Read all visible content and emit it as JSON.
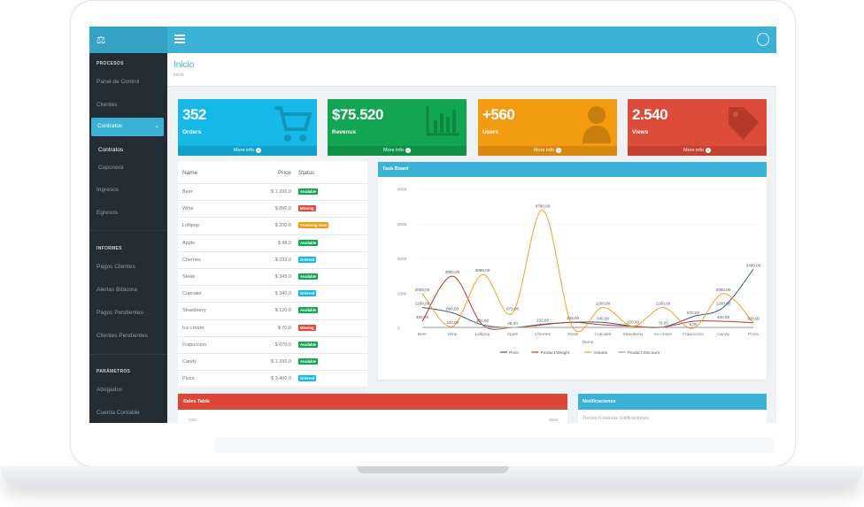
{
  "topbar": {
    "menu_icon": "hamburger-icon",
    "user_icon": "user-circle-icon",
    "logo_icon": "scale-icon"
  },
  "sidebar": {
    "sections": [
      {
        "title": "PROCESOS"
      },
      {
        "title": "INFORMES"
      },
      {
        "title": "PARÁMETROS"
      }
    ],
    "procesos_items": [
      "Panel de Control",
      "Clientes"
    ],
    "active_item": "Contratos",
    "sub_items": [
      "Contratos",
      "Cuponera"
    ],
    "more_items": [
      "Ingresos",
      "Egresos"
    ],
    "informes_items": [
      "Pagos Clientes",
      "Alertas Bitácora",
      "Pagos Pendientes",
      "Clientes Pendientes"
    ],
    "parametros_items": [
      "Abogados",
      "Cuenta Contable"
    ]
  },
  "header": {
    "title": "Inicio",
    "breadcrumb": "Inicio"
  },
  "cards": [
    {
      "value": "352",
      "label": "Orders",
      "more": "More info",
      "color": "#15b8e6",
      "icon": "cart-icon"
    },
    {
      "value": "$75.520",
      "label": "Revenue",
      "more": "More info",
      "color": "#12a652",
      "icon": "bar-chart-icon"
    },
    {
      "value": "+560",
      "label": "Users",
      "more": "More info",
      "color": "#f39c12",
      "icon": "person-icon"
    },
    {
      "value": "2.540",
      "label": "Views",
      "more": "More info",
      "color": "#dd4b39",
      "icon": "tag-icon"
    }
  ],
  "products": {
    "headers": {
      "name": "Name",
      "price": "Price",
      "status": "Status"
    },
    "rows": [
      {
        "name": "Beer",
        "price": "$ 1.200,0",
        "status": "Available",
        "color": "#12a652"
      },
      {
        "name": "Wine",
        "price": "$ 890,0",
        "status": "Missing",
        "color": "#dd4b39"
      },
      {
        "name": "Lollipop",
        "price": "$ 200,0",
        "status": "Comming soon",
        "color": "#f39c12"
      },
      {
        "name": "Apple",
        "price": "$ 48,0",
        "status": "Available",
        "color": "#12a652"
      },
      {
        "name": "Cherries",
        "price": "$ 232,0",
        "status": "Ordered",
        "color": "#15b8e6"
      },
      {
        "name": "Steak",
        "price": "$ 345,0",
        "status": "Available",
        "color": "#12a652"
      },
      {
        "name": "Cupcake",
        "price": "$ 340,0",
        "status": "Ordered",
        "color": "#15b8e6"
      },
      {
        "name": "Strawberry",
        "price": "$ 120,0",
        "status": "Available",
        "color": "#12a652"
      },
      {
        "name": "Ice cream",
        "price": "$ 70,0",
        "status": "Missing",
        "color": "#dd4b39"
      },
      {
        "name": "Frapuccino",
        "price": "$ 670,0",
        "status": "Available",
        "color": "#12a652"
      },
      {
        "name": "Candy",
        "price": "$ 1.200,0",
        "status": "Available",
        "color": "#12a652"
      },
      {
        "name": "Pizza",
        "price": "$ 3.400,0",
        "status": "Ordered",
        "color": "#15b8e6"
      }
    ]
  },
  "taskboard": {
    "title": "Task Board"
  },
  "chart_data": {
    "type": "line",
    "categories": [
      "Beer",
      "Wine",
      "Lollipop",
      "Apple",
      "Cherries",
      "Steak",
      "Cupcake",
      "Strawberry",
      "Ice cream",
      "Frapuccino",
      "Candy",
      "Pizza"
    ],
    "xlabel": "Name",
    "ylabel": "",
    "ylim": [
      0,
      8000
    ],
    "yticks": [
      0,
      2000,
      4000,
      6000,
      8000
    ],
    "grid": true,
    "legend": "bottom",
    "series": [
      {
        "name": "Price",
        "color": "#3c5a8a",
        "values": [
          1200,
          890,
          200,
          48,
          232,
          345,
          340,
          120,
          70,
          670,
          1200,
          3400
        ]
      },
      {
        "name": "Product Weight",
        "color": "#c0392b",
        "values": [
          400,
          3000,
          200,
          48,
          200,
          345,
          200,
          120,
          70,
          400,
          400,
          320
        ]
      },
      {
        "name": "Volume",
        "color": "#f0a030",
        "values": [
          2000,
          100,
          3096,
          879,
          6798,
          50,
          1200,
          120,
          1200,
          5,
          2000,
          320
        ]
      },
      {
        "name": "Product Discount",
        "color": "#9b9b9b",
        "values": [
          50,
          50,
          50,
          48,
          50,
          50,
          50,
          50,
          50,
          50,
          50,
          50
        ]
      }
    ],
    "point_labels": [
      {
        "text": "2000,00",
        "series": 2,
        "index": 0
      },
      {
        "text": "1200,00",
        "series": 0,
        "index": 0
      },
      {
        "text": "400,00",
        "series": 1,
        "index": 0
      },
      {
        "text": "3000,00",
        "series": 1,
        "index": 1
      },
      {
        "text": "890,00",
        "series": 0,
        "index": 1
      },
      {
        "text": "100,00",
        "series": 2,
        "index": 1
      },
      {
        "text": "3096,00",
        "series": 2,
        "index": 2
      },
      {
        "text": "200,00",
        "series": 0,
        "index": 2
      },
      {
        "text": "879,00",
        "series": 2,
        "index": 3
      },
      {
        "text": "48,00",
        "series": 0,
        "index": 3
      },
      {
        "text": "6798,00",
        "series": 2,
        "index": 4
      },
      {
        "text": "232,00",
        "series": 0,
        "index": 4
      },
      {
        "text": "345,00",
        "series": 0,
        "index": 5
      },
      {
        "text": "1200,00",
        "series": 2,
        "index": 6
      },
      {
        "text": "340,00",
        "series": 0,
        "index": 6
      },
      {
        "text": "120,00",
        "series": 0,
        "index": 7
      },
      {
        "text": "1200,00",
        "series": 2,
        "index": 8
      },
      {
        "text": "70,00",
        "series": 0,
        "index": 8
      },
      {
        "text": "670,00",
        "series": 0,
        "index": 9
      },
      {
        "text": "5,00",
        "series": 2,
        "index": 9
      },
      {
        "text": "2000,00",
        "series": 2,
        "index": 10
      },
      {
        "text": "1200,00",
        "series": 0,
        "index": 10
      },
      {
        "text": "400,00",
        "series": 1,
        "index": 10
      },
      {
        "text": "3400,00",
        "series": 0,
        "index": 11
      },
      {
        "text": "320,00",
        "series": 2,
        "index": 11
      }
    ]
  },
  "sales": {
    "title": "Sales Table",
    "left_tick": "7200",
    "right_tick": "3600"
  },
  "notifications": {
    "title": "Notificaciones",
    "body": "Tienes 6 nuevas notificaciones"
  }
}
